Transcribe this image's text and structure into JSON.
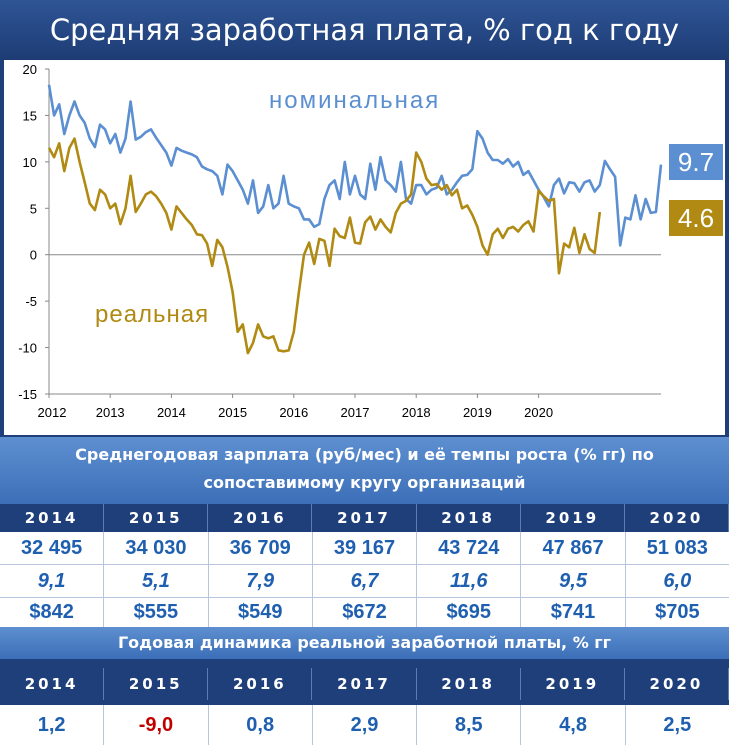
{
  "title": "Средняя заработная плата, % год к году",
  "colors": {
    "nominal": "#5b8fd1",
    "real": "#b08a12",
    "negative": "#c00000"
  },
  "chart_data": {
    "type": "line",
    "ylim": [
      -15,
      20
    ],
    "yticks": [
      "20",
      "15",
      "10",
      "5",
      "0",
      "-5",
      "-10",
      "-15"
    ],
    "xticks": [
      "2012",
      "2013",
      "2014",
      "2015",
      "2016",
      "2017",
      "2018",
      "2019",
      "2020"
    ],
    "series": [
      {
        "name": "номинальная",
        "end_label": "9.7",
        "values": [
          18.3,
          15.0,
          16.2,
          13.0,
          15.0,
          16.5,
          15.0,
          14.2,
          12.5,
          11.6,
          14.0,
          13.5,
          12.0,
          13.0,
          11.0,
          12.5,
          16.5,
          12.4,
          12.7,
          13.2,
          13.5,
          12.6,
          11.8,
          11.0,
          9.6,
          11.5,
          11.2,
          11.0,
          10.8,
          10.5,
          9.5,
          9.2,
          9.0,
          8.5,
          6.5,
          9.7,
          9.0,
          8.0,
          7.0,
          5.5,
          8.0,
          4.5,
          5.2,
          7.5,
          5.0,
          5.5,
          8.5,
          5.5,
          5.2,
          5.0,
          3.8,
          3.8,
          3.0,
          3.3,
          6.0,
          7.5,
          8.0,
          6.0,
          10.0,
          6.5,
          8.5,
          6.5,
          6.0,
          9.8,
          7.0,
          10.5,
          8.0,
          7.5,
          6.8,
          10.0,
          6.0,
          5.5,
          7.5,
          7.5,
          6.5,
          7.0,
          7.2,
          8.5,
          6.5,
          7.0,
          7.8,
          8.5,
          8.6,
          9.2,
          13.3,
          12.5,
          11.0,
          10.2,
          10.2,
          9.8,
          10.3,
          9.5,
          10.0,
          8.6,
          9.0,
          8.0,
          7.0,
          6.2,
          5.2,
          7.5,
          8.2,
          6.6,
          7.8,
          7.7,
          6.8,
          7.8,
          8.0,
          6.8,
          7.5,
          10.1,
          9.2,
          8.4,
          1.0,
          4.0,
          3.8,
          6.4,
          3.8,
          6.0,
          4.5,
          4.6,
          9.7
        ]
      },
      {
        "name": "реальная",
        "end_label": "4.6",
        "values": [
          11.5,
          10.5,
          12.0,
          9.0,
          11.5,
          12.5,
          10.0,
          7.8,
          5.5,
          4.8,
          7.0,
          6.5,
          5.0,
          5.5,
          3.3,
          5.0,
          8.5,
          4.6,
          5.5,
          6.5,
          6.8,
          6.3,
          5.5,
          4.5,
          2.7,
          5.2,
          4.5,
          3.8,
          3.2,
          2.2,
          2.1,
          1.2,
          -1.2,
          1.6,
          0.8,
          -1.3,
          -4.0,
          -8.3,
          -7.5,
          -10.6,
          -9.5,
          -7.5,
          -8.8,
          -9.0,
          -8.8,
          -10.3,
          -10.4,
          -10.3,
          -8.3,
          -4.0,
          0.0,
          1.3,
          -1.0,
          1.7,
          1.5,
          -1.2,
          2.8,
          2.0,
          1.8,
          4.0,
          1.3,
          1.2,
          3.5,
          4.1,
          2.7,
          3.8,
          3.0,
          2.4,
          4.5,
          5.5,
          5.8,
          6.5,
          11.0,
          10.0,
          8.2,
          7.5,
          7.6,
          7.0,
          7.5,
          6.4,
          7.0,
          5.0,
          5.3,
          4.3,
          3.0,
          1.0,
          0.0,
          2.2,
          2.8,
          1.8,
          2.8,
          3.0,
          2.5,
          3.2,
          3.6,
          2.5,
          6.9,
          6.3,
          5.8,
          6.0,
          -2.0,
          1.2,
          0.8,
          2.9,
          0.2,
          2.2,
          0.6,
          0.2,
          4.6
        ]
      }
    ]
  },
  "labels": {
    "nominal": "номинальная",
    "real": "реальная"
  },
  "table1": {
    "header": [
      "Среднегодовая зарплата (руб/мес) и её темпы роста (% гг)  по",
      "сопоставимому кругу организаций"
    ],
    "years": [
      "2014",
      "2015",
      "2016",
      "2017",
      "2018",
      "2019",
      "2020"
    ],
    "salary": [
      "32 495",
      "34 030",
      "36 709",
      "39 167",
      "43 724",
      "47 867",
      "51 083"
    ],
    "growth": [
      "9,1",
      "5,1",
      "7,9",
      "6,7",
      "11,6",
      "9,5",
      "6,0"
    ],
    "usd": [
      "$842",
      "$555",
      "$549",
      "$672",
      "$695",
      "$741",
      "$705"
    ]
  },
  "table2": {
    "header": "Годовая динамика реальной заработной платы, % гг",
    "years": [
      "2014",
      "2015",
      "2016",
      "2017",
      "2018",
      "2019",
      "2020"
    ],
    "values": [
      "1,2",
      "-9,0",
      "0,8",
      "2,9",
      "8,5",
      "4,8",
      "2,5"
    ]
  }
}
